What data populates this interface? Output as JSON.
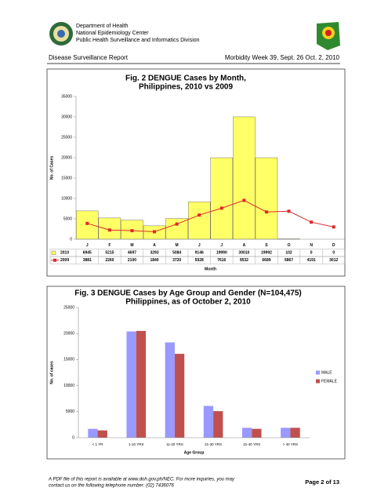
{
  "header": {
    "lines": [
      "Department of Health",
      "National Epidemiology Center",
      "Public Health Surveillance and Informatics Division"
    ],
    "report": "Disease Surveillance Report",
    "week": "Morbidity Week 39, Sept. 26 Oct. 2, 2010"
  },
  "chart_data": [
    {
      "type": "bar",
      "title": [
        "Fig. 2 DENGUE Cases by Month,",
        "Philippines, 2010 vs 2009"
      ],
      "y_label": "No. of Cases",
      "x_label": "Month",
      "categories": [
        "J",
        "F",
        "M",
        "A",
        "M",
        "J",
        "J",
        "A",
        "S",
        "O",
        "N",
        "D"
      ],
      "series": [
        {
          "name": "2010",
          "type": "bar",
          "color": "#ffff66",
          "values": [
            6945,
            5215,
            4697,
            3293,
            5084,
            9146,
            19990,
            30010,
            19992,
            102,
            0,
            0
          ]
        },
        {
          "name": "2009",
          "type": "line",
          "color": "#dd2a2a",
          "values": [
            3881,
            2260,
            2100,
            1840,
            3720,
            5928,
            7616,
            9532,
            6689,
            6867,
            4191,
            3012
          ]
        }
      ],
      "ylim": [
        0,
        35000
      ],
      "yticks": [
        0,
        5000,
        10000,
        15000,
        20000,
        25000,
        30000,
        35000
      ],
      "grid": false,
      "legend": "table"
    },
    {
      "type": "bar",
      "title": [
        "Fig. 3 DENGUE Cases by Age Group and Gender (N=104,475)",
        "Philippines, as of October 2, 2010"
      ],
      "y_label": "No. of cases",
      "x_label": "Age Group",
      "categories": [
        "< 1 YR",
        "1-10 YRS",
        "11-20 YRS",
        "21-30 YRS",
        "31-40 YRS",
        "> 40 YRS"
      ],
      "series": [
        {
          "name": "MALE",
          "type": "bar",
          "color": "#9999ff",
          "values": [
            1700,
            20400,
            18300,
            6100,
            1900,
            1900
          ]
        },
        {
          "name": "FEMALE",
          "type": "bar",
          "color": "#c0504d",
          "values": [
            1400,
            20500,
            16100,
            5100,
            1700,
            1900
          ]
        }
      ],
      "ylim": [
        0,
        25000
      ],
      "yticks": [
        0,
        5000,
        10000,
        15000,
        20000,
        25000
      ],
      "grid": false,
      "legend": "right"
    }
  ],
  "footer": {
    "lines": [
      "A PDF file of this report is available at  www.doh.gov.ph/NEC. For more inquiries, you may",
      "contact us on the following telephone number: (02) 7436076"
    ],
    "page": "Page 2 of 13"
  }
}
